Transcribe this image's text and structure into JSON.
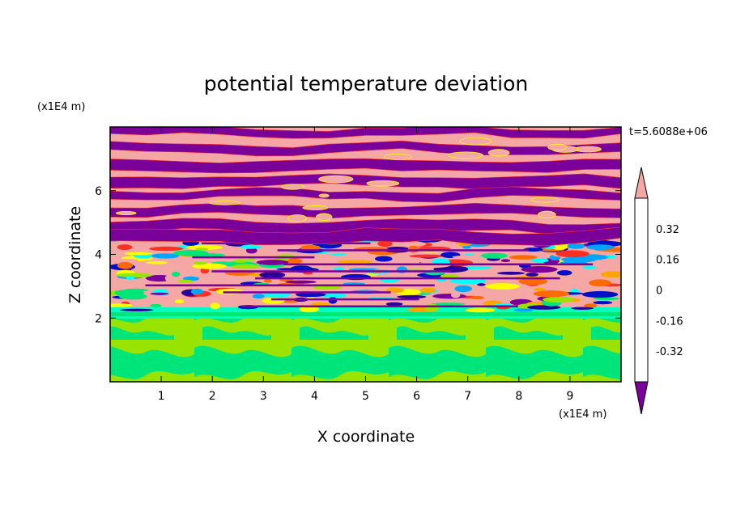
{
  "chart_data": {
    "type": "heatmap",
    "title": "potential temperature deviation",
    "xlabel": "X coordinate",
    "ylabel": "Z coordinate",
    "x_unit": "(x1E4 m)",
    "y_unit": "(x1E4 m)",
    "time_label": "t=5.6088e+06",
    "xlim": [
      0,
      10
    ],
    "ylim": [
      0,
      8
    ],
    "x_ticks": [
      1,
      2,
      3,
      4,
      5,
      6,
      7,
      8,
      9
    ],
    "y_ticks": [
      2,
      4,
      6
    ],
    "colorbar": {
      "levels": [
        -0.48,
        -0.4,
        -0.32,
        -0.24,
        -0.16,
        -0.08,
        0,
        0.08,
        0.16,
        0.24,
        0.32,
        0.4,
        0.48
      ],
      "labels": [
        "0.32",
        "0.16",
        "0",
        "-0.16",
        "-0.32"
      ],
      "label_values": [
        0.32,
        0.16,
        0,
        -0.16,
        -0.32
      ],
      "extend": "both",
      "colors_top_to_bottom": [
        "#f4a7a5",
        "#ff2f24",
        "#ff6a00",
        "#ffa500",
        "#ffff00",
        "#99e300",
        "#00e57a",
        "#00ffff",
        "#00a5ff",
        "#0010c7",
        "#2b0098",
        "#7a009a"
      ]
    },
    "layers": [
      {
        "z_range": [
          0,
          2.0
        ],
        "description": "green / yellow-green mixing layer",
        "dominant_values": [
          -0.08,
          0.08
        ]
      },
      {
        "z_range": [
          2.0,
          2.3
        ],
        "description": "cyan-green transition layer",
        "dominant_values": [
          -0.16,
          -0.08
        ]
      },
      {
        "z_range": [
          2.3,
          4.6
        ],
        "description": "turbulent multicolor banded layer",
        "dominant_values": [
          -0.48,
          0.48
        ]
      },
      {
        "z_range": [
          4.6,
          8.0
        ],
        "description": "alternating pink and purple horizontal bands",
        "dominant_values": [
          -0.48,
          0.48
        ]
      }
    ]
  }
}
